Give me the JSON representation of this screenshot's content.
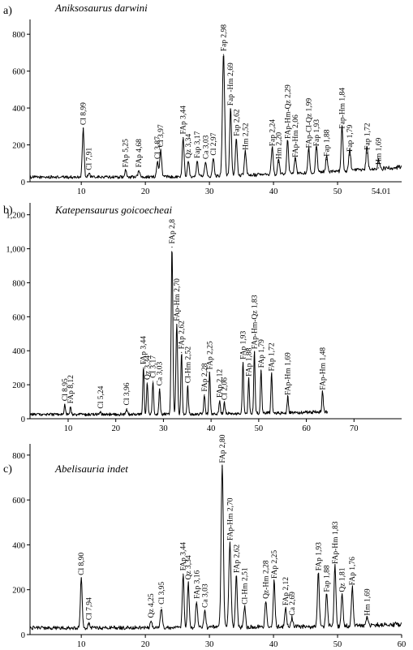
{
  "chart_data": [
    {
      "type": "line",
      "panel": "a)",
      "title": "Aniksosaurus darwini",
      "x_ticks": [
        10,
        20,
        30,
        40,
        50
      ],
      "x_tick_labels": [
        "10",
        "20",
        "30",
        "40",
        "50"
      ],
      "end_label": "54.01",
      "y_ticks": [
        0,
        200,
        400,
        600,
        800
      ],
      "y_tick_labels": [
        "0",
        "200",
        "400",
        "600",
        "800"
      ],
      "xlim": [
        2,
        60
      ],
      "ylim": [
        0,
        880
      ],
      "baseline": 25,
      "end_level": 80,
      "peaks": [
        {
          "x": 10.3,
          "y": 290,
          "label": "Cl 8,99"
        },
        {
          "x": 11.2,
          "y": 45,
          "label": "Cl 7,91"
        },
        {
          "x": 16.9,
          "y": 60,
          "label": "FAp 5,25"
        },
        {
          "x": 19.0,
          "y": 60,
          "label": "FAp 4,68"
        },
        {
          "x": 21.9,
          "y": 105,
          "label": "Cl 3,87"
        },
        {
          "x": 22.4,
          "y": 170,
          "label": "Cl 3,97"
        },
        {
          "x": 25.9,
          "y": 240,
          "label": "FAp 3,44"
        },
        {
          "x": 26.7,
          "y": 110,
          "label": "Qz 3,34"
        },
        {
          "x": 28.1,
          "y": 110,
          "label": "Fap 3,17"
        },
        {
          "x": 29.4,
          "y": 105,
          "label": "Ca 3,03"
        },
        {
          "x": 30.6,
          "y": 125,
          "label": "Cl 2,97"
        },
        {
          "x": 32.2,
          "y": 690,
          "label": "Fap 2,98"
        },
        {
          "x": 33.3,
          "y": 395,
          "label": "Fap -Hm 2,69"
        },
        {
          "x": 34.2,
          "y": 230,
          "label": "Fap 2,62"
        },
        {
          "x": 35.6,
          "y": 155,
          "label": "Hm 2,52"
        },
        {
          "x": 39.8,
          "y": 175,
          "label": "Fap 2,24"
        },
        {
          "x": 40.8,
          "y": 105,
          "label": "Hm 2,20"
        },
        {
          "x": 42.2,
          "y": 215,
          "label": "FAp-Hm-Qz 2,29"
        },
        {
          "x": 43.4,
          "y": 115,
          "label": "FAp-Hm 2,06"
        },
        {
          "x": 45.5,
          "y": 165,
          "label": "FAp-Cl-Qz 1,99"
        },
        {
          "x": 46.7,
          "y": 175,
          "label": "Fap 1,93"
        },
        {
          "x": 48.3,
          "y": 120,
          "label": "Fap 1,88"
        },
        {
          "x": 50.7,
          "y": 270,
          "label": "Fap-Hm 1,84"
        },
        {
          "x": 51.9,
          "y": 145,
          "label": "Fap 1,79"
        },
        {
          "x": 54.6,
          "y": 155,
          "label": "Fap 1,72"
        },
        {
          "x": 56.4,
          "y": 75,
          "label": "Hm 1,69"
        }
      ]
    },
    {
      "type": "line",
      "panel": "b)",
      "title": "Katepensaurus goicoecheai",
      "x_ticks": [
        10,
        20,
        30,
        40,
        50,
        60,
        70
      ],
      "x_tick_labels": [
        "10",
        "20",
        "30",
        "40",
        "50",
        "60",
        "70"
      ],
      "y_ticks": [
        0,
        200,
        400,
        600,
        800,
        1000,
        1200
      ],
      "y_tick_labels": [
        "0",
        "200",
        "400",
        "600",
        "800",
        "1,000",
        "1,200"
      ],
      "xlim": [
        2,
        80
      ],
      "ylim": [
        0,
        1270
      ],
      "baseline": 25,
      "end_level": 40,
      "end_x": 64.5,
      "peaks": [
        {
          "x": 9.3,
          "y": 85,
          "label": "Cl 8,95"
        },
        {
          "x": 10.5,
          "y": 70,
          "label": "FAp 8,12"
        },
        {
          "x": 16.8,
          "y": 40,
          "label": "Cl 5,24"
        },
        {
          "x": 22.3,
          "y": 60,
          "label": "Cl 3,96"
        },
        {
          "x": 25.8,
          "y": 300,
          "label": "FAp 3,44"
        },
        {
          "x": 26.6,
          "y": 210,
          "label": "Qz 3,34"
        },
        {
          "x": 27.8,
          "y": 220,
          "label": "Cl 3,17"
        },
        {
          "x": 29.2,
          "y": 175,
          "label": "Ca 3,03"
        },
        {
          "x": 31.8,
          "y": 1010,
          "label": "FAp 2,8"
        },
        {
          "x": 32.8,
          "y": 555,
          "label": "FAp-Hm 2,70"
        },
        {
          "x": 33.8,
          "y": 390,
          "label": "FAp 2,62"
        },
        {
          "x": 35.1,
          "y": 190,
          "label": "Cl-Hm 2,52"
        },
        {
          "x": 38.6,
          "y": 140,
          "label": "FAp 2,28"
        },
        {
          "x": 39.7,
          "y": 270,
          "label": "FAp 2,25"
        },
        {
          "x": 41.8,
          "y": 105,
          "label": "FAp 2,12"
        },
        {
          "x": 42.8,
          "y": 90,
          "label": "Cl 2,06"
        },
        {
          "x": 46.7,
          "y": 330,
          "label": "FAp 1,93"
        },
        {
          "x": 47.9,
          "y": 230,
          "label": "FAp 1,88"
        },
        {
          "x": 49.1,
          "y": 390,
          "label": "FAp-Hm-Qz 1,83"
        },
        {
          "x": 50.5,
          "y": 280,
          "label": "FAp 1,79"
        },
        {
          "x": 52.7,
          "y": 260,
          "label": "FAp 1,72"
        },
        {
          "x": 56.1,
          "y": 120,
          "label": "FAp-Hm 1,69"
        },
        {
          "x": 63.4,
          "y": 150,
          "label": "FAp-Hm 1,48"
        }
      ]
    },
    {
      "type": "line",
      "panel": "c)",
      "title": "Abelisauria indet",
      "x_ticks": [
        10,
        20,
        30,
        40,
        50,
        60
      ],
      "x_tick_labels": [
        "10",
        "20",
        "30",
        "40",
        "50",
        "60"
      ],
      "y_ticks": [
        0,
        200,
        400,
        600,
        800
      ],
      "y_tick_labels": [
        "0",
        "200",
        "400",
        "600",
        "800"
      ],
      "xlim": [
        2,
        60
      ],
      "ylim": [
        0,
        850
      ],
      "baseline": 30,
      "end_level": 45,
      "peaks": [
        {
          "x": 10.0,
          "y": 250,
          "label": "Cl 8,90"
        },
        {
          "x": 11.2,
          "y": 50,
          "label": "Cl 7,94"
        },
        {
          "x": 20.9,
          "y": 60,
          "label": "Qz 4,25"
        },
        {
          "x": 22.5,
          "y": 120,
          "label": "Cl 3,95"
        },
        {
          "x": 25.9,
          "y": 270,
          "label": "FAp 3,44"
        },
        {
          "x": 26.7,
          "y": 230,
          "label": "Qz 3,34"
        },
        {
          "x": 28.0,
          "y": 145,
          "label": "FAp 3,16"
        },
        {
          "x": 29.3,
          "y": 105,
          "label": "Ca 3,03"
        },
        {
          "x": 32.0,
          "y": 750,
          "label": "FAp 2,80"
        },
        {
          "x": 33.2,
          "y": 405,
          "label": "FAp-Hm 2,70"
        },
        {
          "x": 34.2,
          "y": 260,
          "label": "FAp 2,62"
        },
        {
          "x": 35.5,
          "y": 120,
          "label": "Cl-Hm 2,51"
        },
        {
          "x": 38.8,
          "y": 145,
          "label": "Qz-Hm 2,28"
        },
        {
          "x": 40.1,
          "y": 235,
          "label": "FAp 2,25"
        },
        {
          "x": 41.9,
          "y": 115,
          "label": "FAp 2,12"
        },
        {
          "x": 42.9,
          "y": 70,
          "label": "Ca 2,69"
        },
        {
          "x": 47.0,
          "y": 270,
          "label": "FAp 1,93"
        },
        {
          "x": 48.3,
          "y": 175,
          "label": "Fap 1,88"
        },
        {
          "x": 49.6,
          "y": 300,
          "label": "FAp-Hm 1,83"
        },
        {
          "x": 50.7,
          "y": 175,
          "label": "Qz 1,81"
        },
        {
          "x": 52.3,
          "y": 205,
          "label": "FAp 1,76"
        },
        {
          "x": 54.6,
          "y": 70,
          "label": "Hm 1,69"
        }
      ]
    }
  ]
}
